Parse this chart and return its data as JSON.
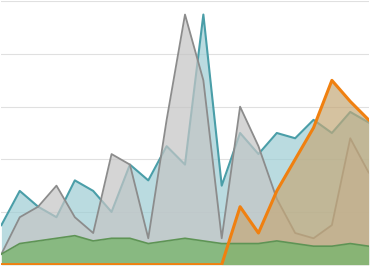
{
  "x": [
    0,
    1,
    2,
    3,
    4,
    5,
    6,
    7,
    8,
    9,
    10,
    11,
    12,
    13,
    14,
    15,
    16,
    17,
    18,
    19,
    20
  ],
  "series_teal": [
    15,
    28,
    22,
    18,
    32,
    28,
    20,
    38,
    32,
    45,
    38,
    95,
    30,
    50,
    42,
    50,
    48,
    55,
    50,
    58,
    54
  ],
  "series_gray": [
    4,
    18,
    22,
    30,
    18,
    12,
    42,
    38,
    10,
    55,
    95,
    70,
    10,
    60,
    45,
    25,
    12,
    10,
    15,
    48,
    35
  ],
  "series_green": [
    4,
    8,
    9,
    10,
    11,
    9,
    10,
    10,
    8,
    9,
    10,
    9,
    8,
    8,
    8,
    9,
    8,
    7,
    7,
    8,
    7
  ],
  "series_orange": [
    0,
    0,
    0,
    0,
    0,
    0,
    0,
    0,
    0,
    0,
    0,
    0,
    0,
    22,
    12,
    28,
    40,
    52,
    70,
    62,
    55
  ],
  "series_tan": [
    0,
    0,
    0,
    0,
    0,
    0,
    0,
    0,
    0,
    0,
    0,
    0,
    0,
    22,
    12,
    28,
    40,
    52,
    70,
    62,
    55
  ],
  "color_teal_line": "#4a9ea8",
  "color_teal_fill": "#9dcdd4",
  "color_gray_line": "#8c8c8c",
  "color_gray_fill": "#c5c5c5",
  "color_green_line": "#5e9455",
  "color_green_fill": "#7ab56e",
  "color_orange_line": "#f08010",
  "color_tan_fill": "#c4a878",
  "color_tan_line": "#a89060",
  "bg_color": "#ffffff",
  "grid_color": "#e0e0e0",
  "ylim": [
    0,
    100
  ],
  "xlim": [
    0,
    20
  ]
}
